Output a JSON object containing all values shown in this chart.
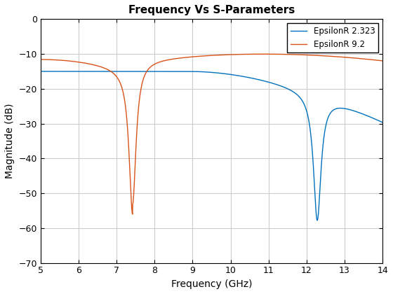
{
  "title": "Frequency Vs S-Parameters",
  "xlabel": "Frequency (GHz)",
  "ylabel": "Magnitude (dB)",
  "xlim": [
    5,
    14
  ],
  "ylim": [
    -70,
    0
  ],
  "xticks": [
    5,
    6,
    7,
    8,
    9,
    10,
    11,
    12,
    13,
    14
  ],
  "yticks": [
    0,
    -10,
    -20,
    -30,
    -40,
    -50,
    -60,
    -70
  ],
  "line1_label": "EpsilonR 2.323",
  "line1_color": "#0072BD",
  "line2_label": "EpsilonR 9.2",
  "line2_color": "#D95319",
  "background_color": "#ffffff",
  "grid_color": "#cccccc",
  "title_fontsize": 11,
  "label_fontsize": 10,
  "figsize": [
    5.6,
    4.2
  ],
  "dpi": 100
}
